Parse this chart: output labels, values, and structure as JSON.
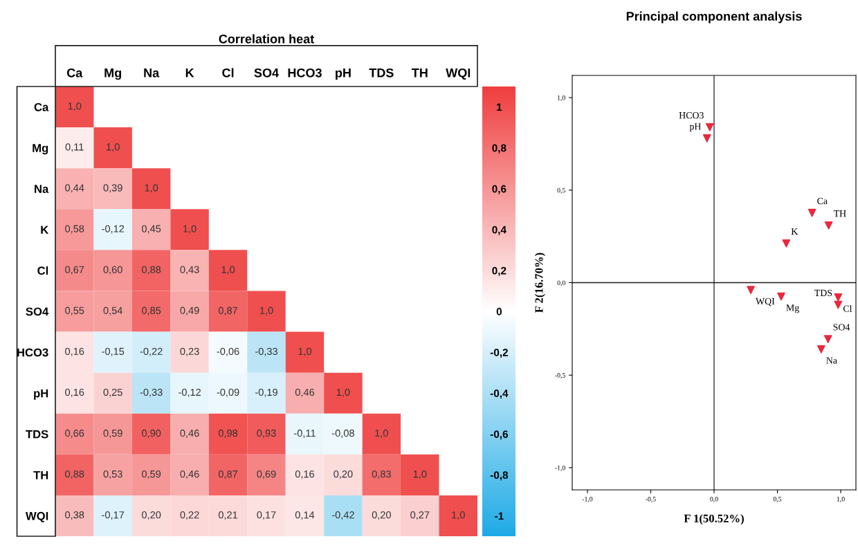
{
  "chart_data": [
    {
      "type": "heatmap",
      "title": "Correlation heat",
      "categories": [
        "Ca",
        "Mg",
        "Na",
        "K",
        "Cl",
        "SO4",
        "HCO3",
        "pH",
        "TDS",
        "TH",
        "WQI"
      ],
      "y_categories": [
        "Ca",
        "Mg",
        "Na",
        "K",
        "Cl",
        "SO4",
        "HCO3",
        "pH",
        "TDS",
        "TH",
        "WQI"
      ],
      "cells": [
        [
          1.0,
          null,
          null,
          null,
          null,
          null,
          null,
          null,
          null,
          null,
          null
        ],
        [
          0.11,
          1.0,
          null,
          null,
          null,
          null,
          null,
          null,
          null,
          null,
          null
        ],
        [
          0.44,
          0.39,
          1.0,
          null,
          null,
          null,
          null,
          null,
          null,
          null,
          null
        ],
        [
          0.58,
          -0.12,
          0.45,
          1.0,
          null,
          null,
          null,
          null,
          null,
          null,
          null
        ],
        [
          0.67,
          0.6,
          0.88,
          0.43,
          1.0,
          null,
          null,
          null,
          null,
          null,
          null
        ],
        [
          0.55,
          0.54,
          0.85,
          0.49,
          0.87,
          1.0,
          null,
          null,
          null,
          null,
          null
        ],
        [
          0.16,
          -0.15,
          -0.22,
          0.23,
          -0.06,
          -0.33,
          1.0,
          null,
          null,
          null,
          null
        ],
        [
          0.16,
          0.25,
          -0.33,
          -0.12,
          -0.09,
          -0.19,
          0.46,
          1.0,
          null,
          null,
          null
        ],
        [
          0.66,
          0.59,
          0.9,
          0.46,
          0.98,
          0.93,
          -0.11,
          -0.08,
          1.0,
          null,
          null
        ],
        [
          0.88,
          0.53,
          0.59,
          0.46,
          0.87,
          0.69,
          0.16,
          0.2,
          0.83,
          1.0,
          null
        ],
        [
          0.38,
          -0.17,
          0.2,
          0.22,
          0.21,
          0.17,
          0.14,
          -0.42,
          0.2,
          0.27,
          1.0
        ]
      ],
      "cell_labels": [
        [
          "1,0",
          null,
          null,
          null,
          null,
          null,
          null,
          null,
          null,
          null,
          null
        ],
        [
          "0,11",
          "1,0",
          null,
          null,
          null,
          null,
          null,
          null,
          null,
          null,
          null
        ],
        [
          "0,44",
          "0,39",
          "1,0",
          null,
          null,
          null,
          null,
          null,
          null,
          null,
          null
        ],
        [
          "0,58",
          "-0,12",
          "0,45",
          "1,0",
          null,
          null,
          null,
          null,
          null,
          null,
          null
        ],
        [
          "0,67",
          "0,60",
          "0,88",
          "0,43",
          "1,0",
          null,
          null,
          null,
          null,
          null,
          null
        ],
        [
          "0,55",
          "0,54",
          "0,85",
          "0,49",
          "0,87",
          "1,0",
          null,
          null,
          null,
          null,
          null
        ],
        [
          "0,16",
          "-0,15",
          "-0,22",
          "0,23",
          "-0,06",
          "-0,33",
          "1,0",
          null,
          null,
          null,
          null
        ],
        [
          "0,16",
          "0,25",
          "-0,33",
          "-0,12",
          "-0,09",
          "-0,19",
          "0,46",
          "1,0",
          null,
          null,
          null
        ],
        [
          "0,66",
          "0,59",
          "0,90",
          "0,46",
          "0,98",
          "0,93",
          "-0,11",
          "-0,08",
          "1,0",
          null,
          null
        ],
        [
          "0,88",
          "0,53",
          "0,59",
          "0,46",
          "0,87",
          "0,69",
          "0,16",
          "0,20",
          "0,83",
          "1,0",
          null
        ],
        [
          "0,38",
          "-0,17",
          "0,20",
          "0,22",
          "0,21",
          "0,17",
          "0,14",
          "-0,42",
          "0,20",
          "0,27",
          "1,0"
        ]
      ],
      "colors": [
        "#1eaae6",
        "#ffffff",
        "#ef3e3e"
      ],
      "clim": [
        -1.1,
        1.1
      ],
      "cticks": [
        {
          "value": 1,
          "label": "1"
        },
        {
          "value": 0.8,
          "label": "0,8"
        },
        {
          "value": 0.6,
          "label": "0,6"
        },
        {
          "value": 0.4,
          "label": "0,4"
        },
        {
          "value": 0.2,
          "label": "0,2"
        },
        {
          "value": 0,
          "label": "0"
        },
        {
          "value": -0.2,
          "label": "-0,2"
        },
        {
          "value": -0.4,
          "label": "-0,4"
        },
        {
          "value": -0.6,
          "label": "-0,6"
        },
        {
          "value": -0.8,
          "label": "-0,8"
        },
        {
          "value": -1,
          "label": "-1"
        }
      ]
    },
    {
      "type": "scatter",
      "title": "Principal component analysis",
      "xlabel": "F 1(50.52%)",
      "ylabel": "F 2(16.70%)",
      "marker": "triangle",
      "grid": false,
      "x": [
        -0.034,
        -0.056,
        0.774,
        0.905,
        0.57,
        0.29,
        0.53,
        0.98,
        0.98,
        0.9,
        0.846
      ],
      "values": [
        0.84,
        0.78,
        0.377,
        0.309,
        0.212,
        -0.04,
        -0.075,
        -0.08,
        -0.12,
        -0.305,
        -0.36
      ],
      "color": "#e8283c",
      "annotations": [
        {
          "text": "HCO3",
          "x": -0.034,
          "y": 0.84
        },
        {
          "text": "pH",
          "x": -0.056,
          "y": 0.78
        },
        {
          "text": "Ca",
          "x": 0.774,
          "y": 0.377
        },
        {
          "text": "TH",
          "x": 0.905,
          "y": 0.309
        },
        {
          "text": "K",
          "x": 0.57,
          "y": 0.212
        },
        {
          "text": "WQI",
          "x": 0.29,
          "y": -0.04
        },
        {
          "text": "Mg",
          "x": 0.53,
          "y": -0.075
        },
        {
          "text": "Cl",
          "x": 0.98,
          "y": -0.08
        },
        {
          "text": "TDS",
          "x": 0.98,
          "y": -0.12
        },
        {
          "text": "SO4",
          "x": 0.9,
          "y": -0.305
        },
        {
          "text": "Na",
          "x": 0.846,
          "y": -0.36
        }
      ],
      "xlim": [
        -1.12,
        1.12
      ],
      "ylim": [
        -1.12,
        1.12
      ],
      "xticks": [
        {
          "value": -1,
          "label": "-1,0"
        },
        {
          "value": -0.5,
          "label": "-0,5"
        },
        {
          "value": 0,
          "label": "0,0"
        },
        {
          "value": 0.5,
          "label": "0,5"
        },
        {
          "value": 1,
          "label": "1,0"
        }
      ],
      "yticks": [
        {
          "value": -1,
          "label": "-1,0"
        },
        {
          "value": -0.5,
          "label": "-0,5"
        },
        {
          "value": 0,
          "label": "0,0"
        },
        {
          "value": 0.5,
          "label": "0,5"
        },
        {
          "value": 1,
          "label": "1,0"
        }
      ],
      "ref_lines": [
        {
          "axis": "x",
          "value": 0,
          "label": null,
          "color": "#555555"
        },
        {
          "axis": "y",
          "value": 0,
          "label": null,
          "color": "#1a1a1a"
        }
      ]
    }
  ]
}
